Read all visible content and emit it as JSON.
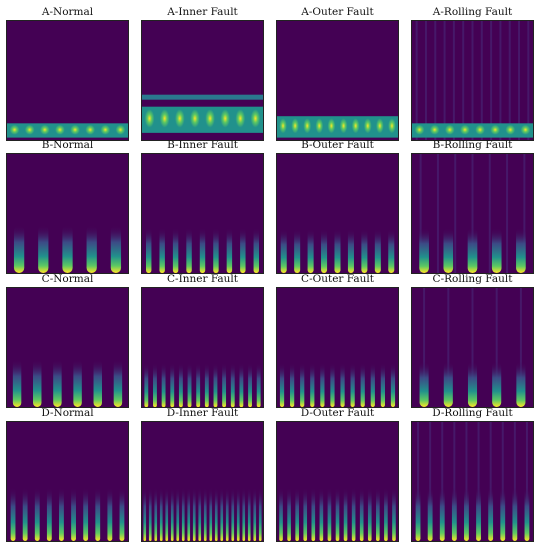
{
  "figure": {
    "colormap": "viridis",
    "colors": {
      "background": "#440154",
      "low": "#46327e",
      "mid": "#21918c",
      "high": "#fde725"
    },
    "panels": [
      {
        "label": "A-Normal",
        "row": "A",
        "condition": "Normal"
      },
      {
        "label": "A-Inner Fault",
        "row": "A",
        "condition": "Inner Fault"
      },
      {
        "label": "A-Outer Fault",
        "row": "A",
        "condition": "Outer Fault"
      },
      {
        "label": "A-Rolling Fault",
        "row": "A",
        "condition": "Rolling Fault"
      },
      {
        "label": "B-Normal",
        "row": "B",
        "condition": "Normal"
      },
      {
        "label": "B-Inner Fault",
        "row": "B",
        "condition": "Inner Fault"
      },
      {
        "label": "B-Outer Fault",
        "row": "B",
        "condition": "Outer Fault"
      },
      {
        "label": "B-Rolling Fault",
        "row": "B",
        "condition": "Rolling Fault"
      },
      {
        "label": "C-Normal",
        "row": "C",
        "condition": "Normal"
      },
      {
        "label": "C-Inner Fault",
        "row": "C",
        "condition": "Inner Fault"
      },
      {
        "label": "C-Outer Fault",
        "row": "C",
        "condition": "Outer Fault"
      },
      {
        "label": "C-Rolling Fault",
        "row": "C",
        "condition": "Rolling Fault"
      },
      {
        "label": "D-Normal",
        "row": "D",
        "condition": "Normal"
      },
      {
        "label": "D-Inner Fault",
        "row": "D",
        "condition": "Inner Fault"
      },
      {
        "label": "D-Outer Fault",
        "row": "D",
        "condition": "Outer Fault"
      },
      {
        "label": "D-Rolling Fault",
        "row": "D",
        "condition": "Rolling Fault"
      }
    ]
  }
}
